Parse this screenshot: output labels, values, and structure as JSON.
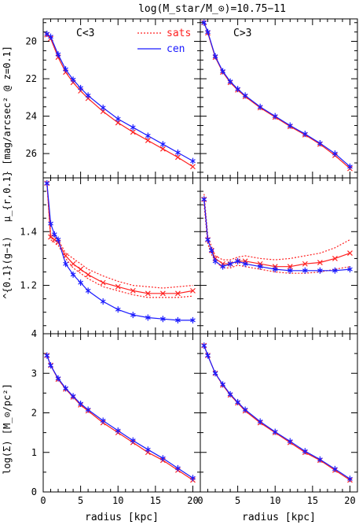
{
  "figure": {
    "title": "log(M_star/M_⊙)=10.75−11",
    "xlabel": "radius [kpc]"
  },
  "chart_data": [
    {
      "type": "line",
      "panel": "mu-left",
      "annotation": "C<3",
      "legend": [
        {
          "name": "sats",
          "color": "#ff2020",
          "style": "dotted"
        },
        {
          "name": "cen",
          "color": "#1a1aff",
          "style": "solid"
        }
      ],
      "ylabel": "μ_{r,0.1} [mag/arcsec² @ z=0.1]",
      "xlim": [
        0,
        21
      ],
      "ylim": [
        27.3,
        18.8
      ],
      "y_inverted": true,
      "xticks": [
        0,
        5,
        10,
        15,
        20
      ],
      "yticks": [
        20,
        22,
        24,
        26
      ],
      "series": [
        {
          "name": "sats",
          "x": [
            0.5,
            1,
            2,
            3,
            4,
            5,
            6,
            8,
            10,
            12,
            14,
            16,
            18,
            20
          ],
          "y": [
            19.65,
            19.85,
            20.85,
            21.65,
            22.2,
            22.65,
            23.05,
            23.75,
            24.35,
            24.85,
            25.3,
            25.75,
            26.2,
            26.7
          ]
        },
        {
          "name": "cen",
          "x": [
            0.5,
            1,
            2,
            3,
            4,
            5,
            6,
            8,
            10,
            12,
            14,
            16,
            18,
            20
          ],
          "y": [
            19.6,
            19.75,
            20.7,
            21.5,
            22.05,
            22.5,
            22.9,
            23.55,
            24.15,
            24.6,
            25.05,
            25.5,
            25.95,
            26.4
          ]
        }
      ]
    },
    {
      "type": "line",
      "panel": "mu-right",
      "annotation": "C>3",
      "xlim": [
        0,
        21
      ],
      "ylim": [
        27.3,
        18.8
      ],
      "y_inverted": true,
      "xticks": [
        0,
        5,
        10,
        15,
        20
      ],
      "yticks": [
        20,
        22,
        24,
        26
      ],
      "series": [
        {
          "name": "sats",
          "x": [
            0.5,
            1,
            2,
            3,
            4,
            5,
            6,
            8,
            10,
            12,
            14,
            16,
            18,
            20
          ],
          "y": [
            19.0,
            19.55,
            20.85,
            21.65,
            22.2,
            22.6,
            22.95,
            23.55,
            24.05,
            24.55,
            25.0,
            25.5,
            26.1,
            26.8
          ]
        },
        {
          "name": "cen",
          "x": [
            0.5,
            1,
            2,
            3,
            4,
            5,
            6,
            8,
            10,
            12,
            14,
            16,
            18,
            20
          ],
          "y": [
            19.0,
            19.5,
            20.8,
            21.6,
            22.15,
            22.55,
            22.9,
            23.5,
            24.0,
            24.5,
            24.95,
            25.45,
            26.0,
            26.7
          ]
        }
      ]
    },
    {
      "type": "line",
      "panel": "color-left",
      "ylabel": "^{0.1}(g−i)",
      "xlim": [
        0,
        21
      ],
      "ylim": [
        1.02,
        1.6
      ],
      "xticks": [
        0,
        5,
        10,
        15,
        20
      ],
      "yticks": [
        1.2,
        1.4
      ],
      "series": [
        {
          "name": "sats",
          "x": [
            0.5,
            1,
            1.5,
            2,
            3,
            4,
            5,
            6,
            8,
            10,
            12,
            14,
            16,
            18,
            20
          ],
          "y": [
            1.58,
            1.38,
            1.37,
            1.36,
            1.31,
            1.28,
            1.26,
            1.24,
            1.21,
            1.195,
            1.18,
            1.17,
            1.17,
            1.17,
            1.18
          ],
          "upper": [
            1.58,
            1.39,
            1.38,
            1.37,
            1.32,
            1.3,
            1.28,
            1.26,
            1.235,
            1.215,
            1.2,
            1.195,
            1.19,
            1.195,
            1.2
          ],
          "lower": [
            1.58,
            1.37,
            1.36,
            1.35,
            1.3,
            1.265,
            1.245,
            1.225,
            1.195,
            1.18,
            1.165,
            1.155,
            1.155,
            1.155,
            1.16
          ]
        },
        {
          "name": "cen",
          "x": [
            0.5,
            1,
            1.5,
            2,
            3,
            4,
            5,
            6,
            8,
            10,
            12,
            14,
            16,
            18,
            20
          ],
          "y": [
            1.58,
            1.43,
            1.39,
            1.37,
            1.28,
            1.24,
            1.21,
            1.18,
            1.14,
            1.11,
            1.09,
            1.08,
            1.075,
            1.07,
            1.07
          ]
        }
      ]
    },
    {
      "type": "line",
      "panel": "color-right",
      "xlim": [
        0,
        21
      ],
      "ylim": [
        1.02,
        1.6
      ],
      "xticks": [
        0,
        5,
        10,
        15,
        20
      ],
      "yticks": [
        1.2,
        1.4
      ],
      "series": [
        {
          "name": "sats",
          "x": [
            0.5,
            1,
            1.5,
            2,
            3,
            4,
            5,
            6,
            8,
            10,
            12,
            14,
            16,
            18,
            20
          ],
          "y": [
            1.52,
            1.37,
            1.33,
            1.3,
            1.28,
            1.28,
            1.29,
            1.29,
            1.28,
            1.27,
            1.27,
            1.28,
            1.285,
            1.3,
            1.32
          ],
          "upper": [
            1.54,
            1.385,
            1.345,
            1.31,
            1.295,
            1.295,
            1.305,
            1.31,
            1.3,
            1.295,
            1.3,
            1.31,
            1.32,
            1.34,
            1.37
          ],
          "lower": [
            1.5,
            1.355,
            1.315,
            1.29,
            1.265,
            1.265,
            1.275,
            1.27,
            1.26,
            1.25,
            1.245,
            1.245,
            1.25,
            1.26,
            1.27
          ]
        },
        {
          "name": "cen",
          "x": [
            0.5,
            1,
            1.5,
            2,
            3,
            4,
            5,
            6,
            8,
            10,
            12,
            14,
            16,
            18,
            20
          ],
          "y": [
            1.52,
            1.37,
            1.33,
            1.29,
            1.27,
            1.28,
            1.29,
            1.28,
            1.27,
            1.26,
            1.255,
            1.255,
            1.255,
            1.255,
            1.26
          ]
        }
      ]
    },
    {
      "type": "line",
      "panel": "sigma-left",
      "ylabel": "log(Σ) [M_⊙/pc²]",
      "xlim": [
        0,
        21
      ],
      "ylim": [
        0,
        4
      ],
      "xticks": [
        0,
        5,
        10,
        15,
        20
      ],
      "yticks": [
        0,
        1,
        2,
        3,
        4
      ],
      "series": [
        {
          "name": "sats",
          "x": [
            0.5,
            1,
            2,
            3,
            4,
            5,
            6,
            8,
            10,
            12,
            14,
            16,
            18,
            20
          ],
          "y": [
            3.45,
            3.2,
            2.85,
            2.6,
            2.4,
            2.2,
            2.05,
            1.75,
            1.5,
            1.25,
            1.0,
            0.8,
            0.55,
            0.3
          ]
        },
        {
          "name": "cen",
          "x": [
            0.5,
            1,
            2,
            3,
            4,
            5,
            6,
            8,
            10,
            12,
            14,
            16,
            18,
            20
          ],
          "y": [
            3.45,
            3.2,
            2.87,
            2.62,
            2.42,
            2.23,
            2.08,
            1.8,
            1.55,
            1.3,
            1.07,
            0.85,
            0.6,
            0.35
          ]
        }
      ]
    },
    {
      "type": "line",
      "panel": "sigma-right",
      "xlim": [
        0,
        21
      ],
      "ylim": [
        0,
        4
      ],
      "xticks": [
        0,
        5,
        10,
        15,
        20
      ],
      "yticks": [
        0,
        1,
        2,
        3,
        4
      ],
      "series": [
        {
          "name": "sats",
          "x": [
            0.5,
            1,
            2,
            3,
            4,
            5,
            6,
            8,
            10,
            12,
            14,
            16,
            18,
            20
          ],
          "y": [
            3.7,
            3.45,
            3.0,
            2.7,
            2.45,
            2.25,
            2.05,
            1.75,
            1.5,
            1.25,
            1.0,
            0.8,
            0.55,
            0.3
          ]
        },
        {
          "name": "cen",
          "x": [
            0.5,
            1,
            2,
            3,
            4,
            5,
            6,
            8,
            10,
            12,
            14,
            16,
            18,
            20
          ],
          "y": [
            3.7,
            3.45,
            3.0,
            2.72,
            2.47,
            2.27,
            2.08,
            1.78,
            1.52,
            1.28,
            1.03,
            0.82,
            0.58,
            0.33
          ]
        }
      ]
    }
  ]
}
